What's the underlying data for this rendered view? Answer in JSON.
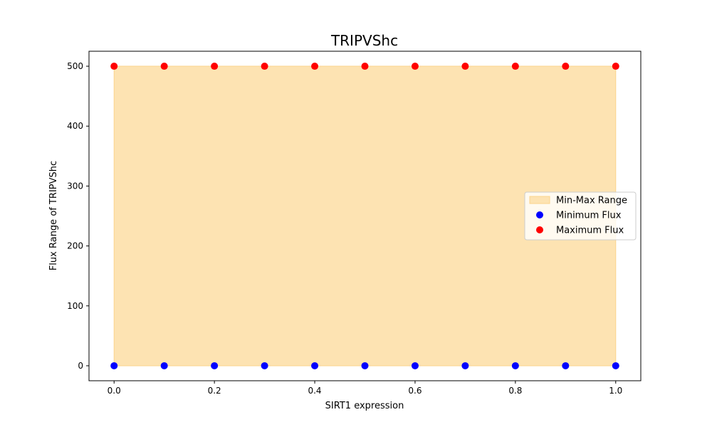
{
  "chart_data": {
    "type": "scatter",
    "title": "TRIPVShc",
    "xlabel": "SIRT1 expression",
    "ylabel": "Flux Range of TRIPVShc",
    "xlim": [
      -0.05,
      1.05
    ],
    "ylim": [
      -25,
      525
    ],
    "xticks": [
      0.0,
      0.2,
      0.4,
      0.6,
      0.8,
      1.0
    ],
    "xtick_labels": [
      "0.0",
      "0.2",
      "0.4",
      "0.6",
      "0.8",
      "1.0"
    ],
    "yticks": [
      0,
      100,
      200,
      300,
      400,
      500
    ],
    "ytick_labels": [
      "0",
      "100",
      "200",
      "300",
      "400",
      "500"
    ],
    "grid": false,
    "legend_position": "center-right",
    "x": [
      0.0,
      0.1,
      0.2,
      0.3,
      0.4,
      0.5,
      0.6,
      0.7,
      0.8,
      0.9,
      1.0
    ],
    "series": [
      {
        "name": "Min-Max Range",
        "kind": "fill_between",
        "color": "#fde3b2",
        "edge_color": "#fbd48c"
      },
      {
        "name": "Minimum Flux",
        "kind": "scatter",
        "color": "#0000ff",
        "values": [
          0,
          0,
          0,
          0,
          0,
          0,
          0,
          0,
          0,
          0,
          0
        ]
      },
      {
        "name": "Maximum Flux",
        "kind": "scatter",
        "color": "#ff0000",
        "values": [
          500,
          500,
          500,
          500,
          500,
          500,
          500,
          500,
          500,
          500,
          500
        ]
      }
    ]
  }
}
